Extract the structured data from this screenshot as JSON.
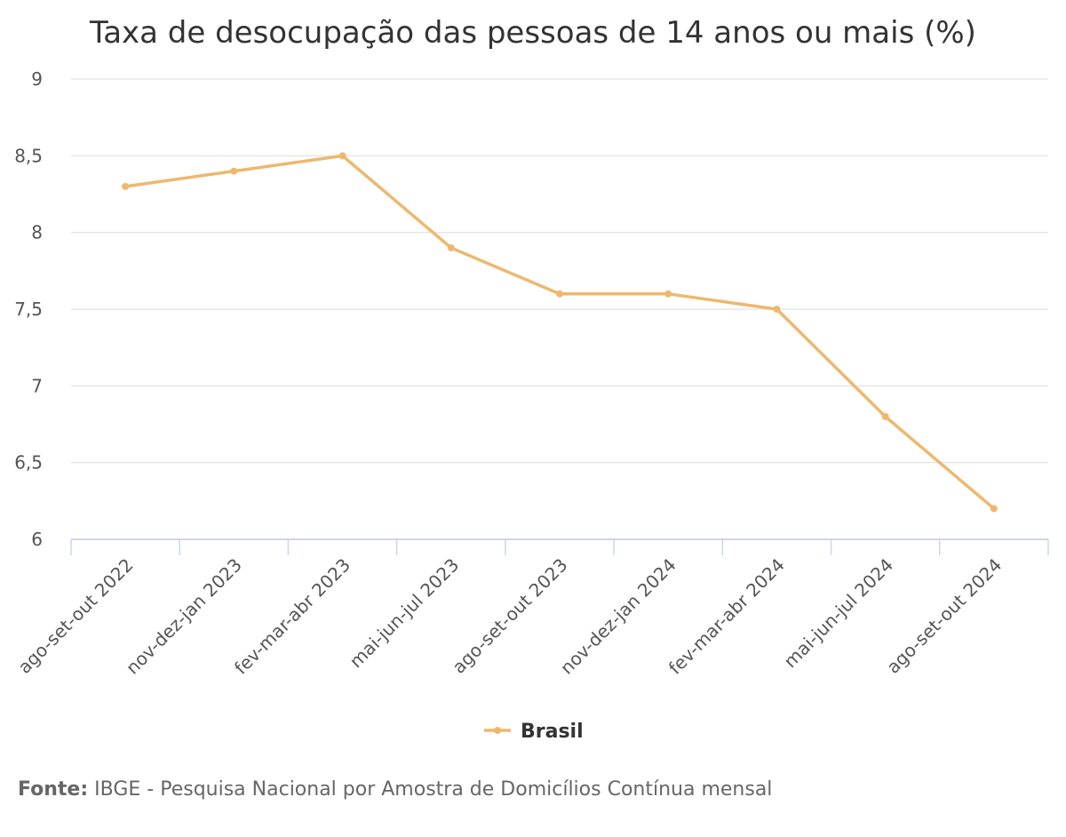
{
  "chart_data": {
    "type": "line",
    "title": "Taxa de desocupação das pessoas de 14 anos ou mais (%)",
    "xlabel": "",
    "ylabel": "",
    "categories": [
      "ago-set-out 2022",
      "nov-dez-jan 2023",
      "fev-mar-abr 2023",
      "mai-jun-jul 2023",
      "ago-set-out 2023",
      "nov-dez-jan 2024",
      "fev-mar-abr 2024",
      "mai-jun-jul 2024",
      "ago-set-out 2024"
    ],
    "series": [
      {
        "name": "Brasil",
        "color": "#EDB86E",
        "values": [
          8.3,
          8.4,
          8.5,
          7.9,
          7.6,
          7.6,
          7.5,
          6.8,
          6.2
        ]
      }
    ],
    "ylim": [
      6,
      9
    ],
    "yticks": [
      6,
      6.5,
      7,
      7.5,
      8,
      8.5,
      9
    ],
    "ytick_labels": [
      "6",
      "6,5",
      "7",
      "7,5",
      "8",
      "8,5",
      "9"
    ],
    "grid": true,
    "legend": "bottom-center"
  },
  "source": {
    "prefix": "Fonte:",
    "text": " IBGE - Pesquisa Nacional por Amostra de Domicílios Contínua mensal"
  },
  "colors": {
    "grid": "#e6e6e6",
    "axis": "#ccd6eb",
    "series": "#EDB86E"
  }
}
